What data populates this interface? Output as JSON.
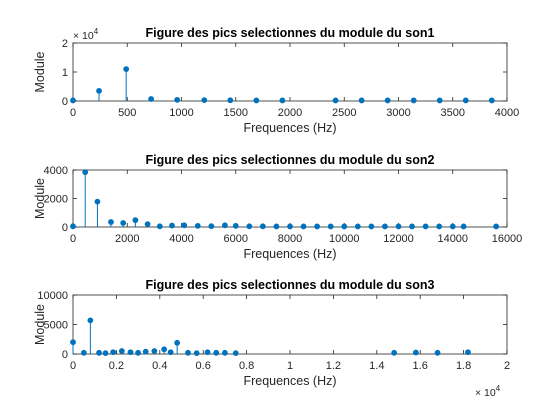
{
  "chart_data": [
    {
      "type": "stem",
      "title": "Figure des pics selectionnes du module du son1",
      "xlabel": "Frequences (Hz)",
      "ylabel": "Module",
      "xlim": [
        0,
        4000
      ],
      "ylim": [
        0,
        20000
      ],
      "xticks": [
        0,
        500,
        1000,
        1500,
        2000,
        2500,
        3000,
        3500,
        4000
      ],
      "xtick_labels": [
        "0",
        "500",
        "1000",
        "1500",
        "2000",
        "2500",
        "3000",
        "3500",
        "4000"
      ],
      "yticks": [
        0,
        10000,
        20000
      ],
      "ytick_labels": [
        "0",
        "1",
        "2"
      ],
      "y_exponent_base": "× 10",
      "y_exponent_power": "4",
      "x_exponent_base": "",
      "x_exponent_power": "",
      "color": "#0072BD",
      "points": [
        [
          0,
          200
        ],
        [
          240,
          3500
        ],
        [
          490,
          11000
        ],
        [
          720,
          700
        ],
        [
          960,
          400
        ],
        [
          1210,
          300
        ],
        [
          1450,
          250
        ],
        [
          1690,
          200
        ],
        [
          1930,
          200
        ],
        [
          2420,
          200
        ],
        [
          2660,
          200
        ],
        [
          2900,
          200
        ],
        [
          3140,
          200
        ],
        [
          3380,
          200
        ],
        [
          3620,
          200
        ],
        [
          3860,
          200
        ]
      ]
    },
    {
      "type": "stem",
      "title": "Figure des pics selectionnes du module du son2",
      "xlabel": "Frequences (Hz)",
      "ylabel": "Module",
      "xlim": [
        0,
        16000
      ],
      "ylim": [
        0,
        4000
      ],
      "xticks": [
        0,
        2000,
        4000,
        6000,
        8000,
        10000,
        12000,
        14000,
        16000
      ],
      "xtick_labels": [
        "0",
        "2000",
        "4000",
        "6000",
        "8000",
        "10000",
        "12000",
        "14000",
        "16000"
      ],
      "yticks": [
        0,
        2000,
        4000
      ],
      "ytick_labels": [
        "0",
        "2000",
        "4000"
      ],
      "y_exponent_base": "",
      "y_exponent_power": "",
      "x_exponent_base": "",
      "x_exponent_power": "",
      "color": "#0072BD",
      "points": [
        [
          0,
          50
        ],
        [
          450,
          3850
        ],
        [
          900,
          1780
        ],
        [
          1400,
          350
        ],
        [
          1850,
          280
        ],
        [
          2300,
          480
        ],
        [
          2750,
          200
        ],
        [
          3200,
          50
        ],
        [
          3650,
          100
        ],
        [
          4100,
          120
        ],
        [
          4600,
          80
        ],
        [
          5100,
          60
        ],
        [
          5600,
          120
        ],
        [
          6000,
          80
        ],
        [
          6500,
          50
        ],
        [
          7000,
          50
        ],
        [
          7500,
          40
        ],
        [
          8000,
          40
        ],
        [
          8500,
          40
        ],
        [
          9000,
          40
        ],
        [
          9500,
          40
        ],
        [
          10000,
          40
        ],
        [
          10500,
          40
        ],
        [
          11000,
          40
        ],
        [
          11500,
          40
        ],
        [
          12000,
          40
        ],
        [
          12500,
          40
        ],
        [
          13000,
          40
        ],
        [
          13500,
          40
        ],
        [
          14000,
          40
        ],
        [
          14400,
          40
        ],
        [
          15600,
          40
        ]
      ]
    },
    {
      "type": "stem",
      "title": "Figure des pics selectionnes du module du son3",
      "xlabel": "Frequences (Hz)",
      "ylabel": "Module",
      "xlim": [
        0,
        20000
      ],
      "ylim": [
        0,
        10000
      ],
      "xticks": [
        0,
        2000,
        4000,
        6000,
        8000,
        10000,
        12000,
        14000,
        16000,
        18000,
        20000
      ],
      "xtick_labels": [
        "0",
        "0.2",
        "0.4",
        "0.6",
        "0.8",
        "1",
        "1.2",
        "1.4",
        "1.6",
        "1.8",
        "2"
      ],
      "yticks": [
        0,
        5000,
        10000
      ],
      "ytick_labels": [
        "0",
        "5000",
        "10000"
      ],
      "y_exponent_base": "",
      "y_exponent_power": "",
      "x_exponent_base": "× 10",
      "x_exponent_power": "4",
      "color": "#0072BD",
      "points": [
        [
          0,
          2000
        ],
        [
          500,
          200
        ],
        [
          800,
          5700
        ],
        [
          1200,
          200
        ],
        [
          1500,
          150
        ],
        [
          1850,
          300
        ],
        [
          2250,
          500
        ],
        [
          2650,
          300
        ],
        [
          3000,
          200
        ],
        [
          3350,
          400
        ],
        [
          3750,
          500
        ],
        [
          4200,
          800
        ],
        [
          4500,
          300
        ],
        [
          4800,
          1900
        ],
        [
          5300,
          200
        ],
        [
          5700,
          150
        ],
        [
          6200,
          300
        ],
        [
          6600,
          200
        ],
        [
          7000,
          200
        ],
        [
          7500,
          150
        ],
        [
          14800,
          200
        ],
        [
          15800,
          250
        ],
        [
          16800,
          200
        ],
        [
          18200,
          300
        ]
      ]
    }
  ]
}
